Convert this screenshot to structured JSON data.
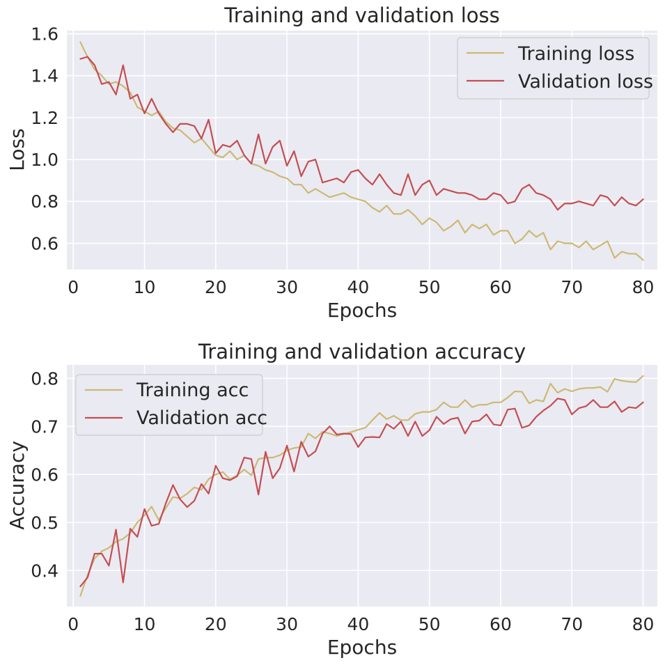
{
  "chart_data": [
    {
      "type": "line",
      "title": "Training and validation loss",
      "xlabel": "Epochs",
      "ylabel": "Loss",
      "xlim": [
        -0.9,
        82.0
      ],
      "ylim": [
        0.475,
        1.615
      ],
      "xticks": [
        0,
        10,
        20,
        30,
        40,
        50,
        60,
        70,
        80
      ],
      "yticks": [
        0.6,
        0.8,
        1.0,
        1.2,
        1.4,
        1.6
      ],
      "ytick_labels": [
        "0.6",
        "0.8",
        "1.0",
        "1.2",
        "1.4",
        "1.6"
      ],
      "legend": "top-right",
      "grid": true,
      "background": "#eaeaf2",
      "x": [
        1,
        2,
        3,
        4,
        5,
        6,
        7,
        8,
        9,
        10,
        11,
        12,
        13,
        14,
        15,
        16,
        17,
        18,
        19,
        20,
        21,
        22,
        23,
        24,
        25,
        26,
        27,
        28,
        29,
        30,
        31,
        32,
        33,
        34,
        35,
        36,
        37,
        38,
        39,
        40,
        41,
        42,
        43,
        44,
        45,
        46,
        47,
        48,
        49,
        50,
        51,
        52,
        53,
        54,
        55,
        56,
        57,
        58,
        59,
        60,
        61,
        62,
        63,
        64,
        65,
        66,
        67,
        68,
        69,
        70,
        71,
        72,
        73,
        74,
        75,
        76,
        77,
        78,
        79,
        80
      ],
      "series": [
        {
          "name": "Training loss",
          "color": "#ccb974",
          "values": [
            1.56,
            1.49,
            1.43,
            1.4,
            1.36,
            1.37,
            1.35,
            1.32,
            1.25,
            1.23,
            1.21,
            1.23,
            1.18,
            1.15,
            1.14,
            1.11,
            1.08,
            1.1,
            1.06,
            1.02,
            1.01,
            1.04,
            1.0,
            1.02,
            0.98,
            0.97,
            0.95,
            0.94,
            0.92,
            0.91,
            0.88,
            0.88,
            0.84,
            0.86,
            0.84,
            0.82,
            0.83,
            0.84,
            0.82,
            0.81,
            0.8,
            0.77,
            0.75,
            0.78,
            0.74,
            0.74,
            0.76,
            0.73,
            0.69,
            0.72,
            0.7,
            0.66,
            0.68,
            0.71,
            0.65,
            0.69,
            0.67,
            0.69,
            0.64,
            0.66,
            0.66,
            0.6,
            0.62,
            0.66,
            0.63,
            0.65,
            0.57,
            0.61,
            0.6,
            0.6,
            0.58,
            0.61,
            0.57,
            0.59,
            0.61,
            0.53,
            0.56,
            0.55,
            0.55,
            0.52
          ]
        },
        {
          "name": "Validation loss",
          "color": "#c44e52",
          "values": [
            1.48,
            1.49,
            1.45,
            1.36,
            1.37,
            1.31,
            1.45,
            1.29,
            1.31,
            1.22,
            1.29,
            1.22,
            1.17,
            1.13,
            1.17,
            1.17,
            1.16,
            1.1,
            1.19,
            1.03,
            1.07,
            1.06,
            1.09,
            1.02,
            0.98,
            1.12,
            0.98,
            1.06,
            1.09,
            0.97,
            1.04,
            0.92,
            0.99,
            1.0,
            0.89,
            0.9,
            0.91,
            0.89,
            0.94,
            0.95,
            0.91,
            0.88,
            0.93,
            0.88,
            0.84,
            0.83,
            0.93,
            0.83,
            0.88,
            0.9,
            0.83,
            0.86,
            0.85,
            0.84,
            0.84,
            0.83,
            0.81,
            0.81,
            0.84,
            0.83,
            0.79,
            0.8,
            0.86,
            0.88,
            0.84,
            0.83,
            0.81,
            0.76,
            0.79,
            0.79,
            0.8,
            0.79,
            0.78,
            0.83,
            0.82,
            0.78,
            0.82,
            0.79,
            0.78,
            0.81
          ]
        }
      ]
    },
    {
      "type": "line",
      "title": "Training and validation accuracy",
      "xlabel": "Epochs",
      "ylabel": "Accuracy",
      "xlim": [
        -0.9,
        82.0
      ],
      "ylim": [
        0.325,
        0.828
      ],
      "xticks": [
        0,
        10,
        20,
        30,
        40,
        50,
        60,
        70,
        80
      ],
      "yticks": [
        0.4,
        0.5,
        0.6,
        0.7,
        0.8
      ],
      "ytick_labels": [
        "0.4",
        "0.5",
        "0.6",
        "0.7",
        "0.8"
      ],
      "legend": "top-left",
      "grid": true,
      "background": "#eaeaf2",
      "x": [
        1,
        2,
        3,
        4,
        5,
        6,
        7,
        8,
        9,
        10,
        11,
        12,
        13,
        14,
        15,
        16,
        17,
        18,
        19,
        20,
        21,
        22,
        23,
        24,
        25,
        26,
        27,
        28,
        29,
        30,
        31,
        32,
        33,
        34,
        35,
        36,
        37,
        38,
        39,
        40,
        41,
        42,
        43,
        44,
        45,
        46,
        47,
        48,
        49,
        50,
        51,
        52,
        53,
        54,
        55,
        56,
        57,
        58,
        59,
        60,
        61,
        62,
        63,
        64,
        65,
        66,
        67,
        68,
        69,
        70,
        71,
        72,
        73,
        74,
        75,
        76,
        77,
        78,
        79,
        80
      ],
      "series": [
        {
          "name": "Training acc",
          "color": "#ccb974",
          "values": [
            0.347,
            0.39,
            0.425,
            0.44,
            0.447,
            0.46,
            0.466,
            0.478,
            0.5,
            0.515,
            0.533,
            0.505,
            0.53,
            0.553,
            0.55,
            0.56,
            0.573,
            0.568,
            0.59,
            0.6,
            0.605,
            0.59,
            0.598,
            0.61,
            0.598,
            0.632,
            0.635,
            0.635,
            0.64,
            0.65,
            0.655,
            0.657,
            0.685,
            0.675,
            0.689,
            0.685,
            0.68,
            0.684,
            0.688,
            0.693,
            0.697,
            0.713,
            0.728,
            0.715,
            0.722,
            0.713,
            0.713,
            0.726,
            0.73,
            0.73,
            0.735,
            0.75,
            0.74,
            0.74,
            0.755,
            0.74,
            0.745,
            0.745,
            0.75,
            0.75,
            0.76,
            0.773,
            0.772,
            0.748,
            0.755,
            0.752,
            0.789,
            0.77,
            0.778,
            0.773,
            0.778,
            0.78,
            0.78,
            0.782,
            0.772,
            0.799,
            0.795,
            0.793,
            0.792,
            0.805
          ]
        },
        {
          "name": "Validation acc",
          "color": "#c44e52",
          "values": [
            0.367,
            0.385,
            0.435,
            0.435,
            0.41,
            0.485,
            0.375,
            0.487,
            0.47,
            0.528,
            0.493,
            0.497,
            0.54,
            0.578,
            0.548,
            0.532,
            0.545,
            0.58,
            0.56,
            0.618,
            0.592,
            0.588,
            0.596,
            0.635,
            0.632,
            0.558,
            0.647,
            0.592,
            0.613,
            0.66,
            0.606,
            0.668,
            0.637,
            0.648,
            0.685,
            0.7,
            0.683,
            0.685,
            0.684,
            0.657,
            0.677,
            0.678,
            0.677,
            0.705,
            0.695,
            0.71,
            0.68,
            0.71,
            0.68,
            0.692,
            0.72,
            0.705,
            0.715,
            0.718,
            0.685,
            0.71,
            0.712,
            0.725,
            0.704,
            0.702,
            0.735,
            0.737,
            0.697,
            0.702,
            0.72,
            0.733,
            0.743,
            0.758,
            0.755,
            0.725,
            0.738,
            0.742,
            0.755,
            0.74,
            0.74,
            0.752,
            0.73,
            0.74,
            0.738,
            0.75
          ]
        }
      ]
    }
  ]
}
